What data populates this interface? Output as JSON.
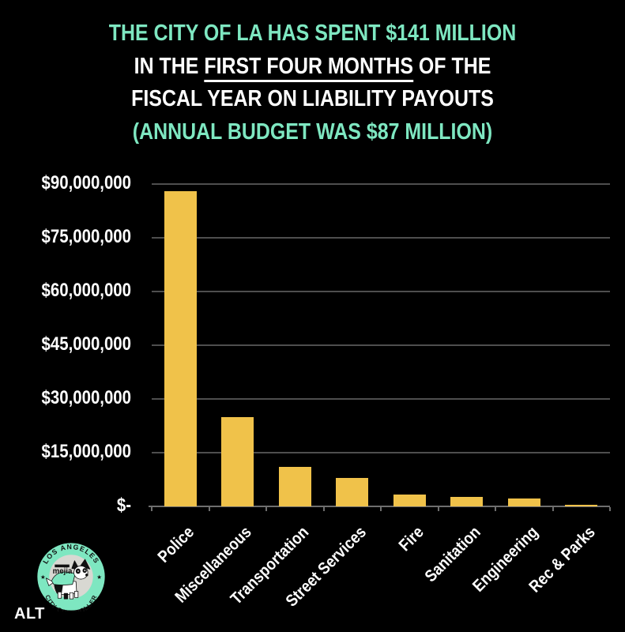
{
  "colors": {
    "background": "#000000",
    "accent_mint": "#7EE7C1",
    "bar_yellow": "#F0C24A",
    "gridline_gray": "#4E4E4E",
    "axis_gray": "#6E6E6E",
    "text_white": "#FFFFFF",
    "badge_inner_gray": "#D8D8D2",
    "badge_ink": "#111111"
  },
  "title": {
    "line1": "THE CITY OF LA HAS SPENT $141 MILLION",
    "line2_prefix": "IN THE ",
    "line2_underlined": "FIRST FOUR MONTHS",
    "line2_suffix": " OF THE",
    "line3": "FISCAL YEAR ON LIABILITY PAYOUTS",
    "line4": "(ANNUAL BUDGET WAS $87 MILLION)"
  },
  "chart_data": {
    "type": "bar",
    "title": "THE CITY OF LA HAS SPENT $141 MILLION IN THE FIRST FOUR MONTHS OF THE FISCAL YEAR ON LIABILITY PAYOUTS (ANNUAL BUDGET WAS $87 MILLION)",
    "categories": [
      "Police",
      "Miscellaneous",
      "Transportation",
      "Street Services",
      "Fire",
      "Sanitation",
      "Engineering",
      "Rec & Parks"
    ],
    "values": [
      88000000,
      25000000,
      11000000,
      8000000,
      3200000,
      2600000,
      2300000,
      500000
    ],
    "bar_color": "#F0C24A",
    "xlabel": "",
    "ylabel": "",
    "ylim": [
      0,
      90000000
    ],
    "grid": true,
    "legend": "none",
    "x_label_rotation_deg": 45,
    "yticks": [
      {
        "label": "$90,000,000",
        "value": 90000000
      },
      {
        "label": "$75,000,000",
        "value": 75000000
      },
      {
        "label": "$60,000,000",
        "value": 60000000
      },
      {
        "label": "$45,000,000",
        "value": 45000000
      },
      {
        "label": "$30,000,000",
        "value": 30000000
      },
      {
        "label": "$15,000,000",
        "value": 15000000
      },
      {
        "label": "$-",
        "value": 0
      }
    ]
  },
  "logo": {
    "top_text": "LOS ANGELES",
    "bottom_text": "CITY CONTROLLER",
    "name_text": "mejia",
    "star": "★"
  },
  "footer": {
    "alt_label": "ALT"
  }
}
